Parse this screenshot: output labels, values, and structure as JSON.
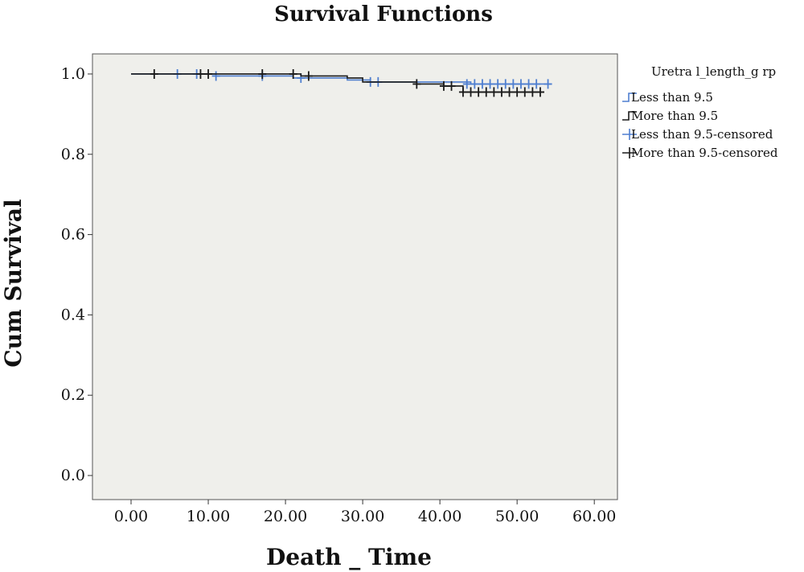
{
  "chart_data": {
    "type": "line",
    "title": "Survival Functions",
    "xlabel": "Death _ Time",
    "ylabel": "Cum Survival",
    "xlim": [
      -5,
      63
    ],
    "ylim": [
      -0.06,
      1.05
    ],
    "x_ticks": [
      0,
      10,
      20,
      30,
      40,
      50,
      60
    ],
    "x_tick_labels": [
      "0.00",
      "10.00",
      "20.00",
      "30.00",
      "40.00",
      "50.00",
      "60.00"
    ],
    "y_ticks": [
      0.0,
      0.2,
      0.4,
      0.6,
      0.8,
      1.0
    ],
    "y_tick_labels": [
      "0.0",
      "0.2",
      "0.4",
      "0.6",
      "0.8",
      "1.0"
    ],
    "grid": false,
    "legend": {
      "title": "Uretra l_length_g rp",
      "placement": "right",
      "entries": [
        {
          "label": "Less than 9.5",
          "color": "#4f7fd0",
          "kind": "step"
        },
        {
          "label": "More than 9.5",
          "color": "#1a1a1a",
          "kind": "step"
        },
        {
          "label": "Less than 9.5-censored",
          "color": "#4f7fd0",
          "kind": "censor"
        },
        {
          "label": "More than 9.5-censored",
          "color": "#1a1a1a",
          "kind": "censor"
        }
      ]
    },
    "series": [
      {
        "name": "Less than 9.5",
        "color": "#4f7fd0",
        "steps": [
          [
            0,
            1.0
          ],
          [
            11,
            0.995
          ],
          [
            21,
            0.99
          ],
          [
            28,
            0.985
          ],
          [
            31,
            0.98
          ],
          [
            44,
            0.975
          ],
          [
            54.5,
            0.975
          ]
        ],
        "censored": [
          [
            6,
            1.0
          ],
          [
            8.5,
            1.0
          ],
          [
            11,
            0.995
          ],
          [
            17,
            0.995
          ],
          [
            22,
            0.99
          ],
          [
            31,
            0.98
          ],
          [
            32,
            0.98
          ],
          [
            43.5,
            0.975
          ],
          [
            44.5,
            0.975
          ],
          [
            45.5,
            0.975
          ],
          [
            46.5,
            0.975
          ],
          [
            47.5,
            0.975
          ],
          [
            48.5,
            0.975
          ],
          [
            49.5,
            0.975
          ],
          [
            50.5,
            0.975
          ],
          [
            51.5,
            0.975
          ],
          [
            52.5,
            0.975
          ],
          [
            54,
            0.975
          ]
        ]
      },
      {
        "name": "More than 9.5",
        "color": "#1a1a1a",
        "steps": [
          [
            0,
            1.0
          ],
          [
            22,
            0.995
          ],
          [
            28,
            0.99
          ],
          [
            30,
            0.98
          ],
          [
            37,
            0.975
          ],
          [
            40.5,
            0.97
          ],
          [
            43,
            0.955
          ],
          [
            53.5,
            0.955
          ]
        ],
        "censored": [
          [
            3,
            1.0
          ],
          [
            9,
            1.0
          ],
          [
            10,
            1.0
          ],
          [
            17,
            1.0
          ],
          [
            21,
            1.0
          ],
          [
            23,
            0.995
          ],
          [
            37,
            0.975
          ],
          [
            40.5,
            0.97
          ],
          [
            41.5,
            0.97
          ],
          [
            43,
            0.955
          ],
          [
            44,
            0.955
          ],
          [
            45,
            0.955
          ],
          [
            46,
            0.955
          ],
          [
            47,
            0.955
          ],
          [
            48,
            0.955
          ],
          [
            49,
            0.955
          ],
          [
            50,
            0.955
          ],
          [
            51,
            0.955
          ],
          [
            52,
            0.955
          ],
          [
            53,
            0.955
          ]
        ]
      }
    ]
  }
}
